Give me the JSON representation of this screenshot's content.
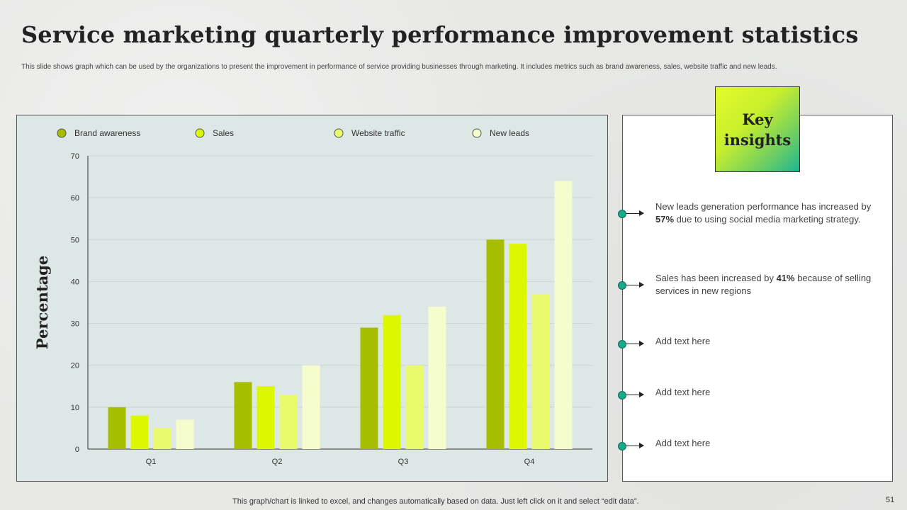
{
  "page": {
    "title": "Service marketing quarterly performance improvement statistics",
    "subtitle": "This slide shows graph which can be used by the organizations to present the improvement in performance of service providing businesses through marketing. It includes metrics such as brand awareness, sales, website traffic and new leads.",
    "footer_note": "This graph/chart is linked to excel,  and changes automatically based on data. Just left click on it and select “edit data”.",
    "page_number": "51"
  },
  "chart_data": {
    "type": "bar",
    "title": "",
    "xlabel": "",
    "ylabel": "Percentage",
    "ylim": [
      0,
      70
    ],
    "yticks": [
      0,
      10,
      20,
      30,
      40,
      50,
      60,
      70
    ],
    "grid": true,
    "legend_position": "top",
    "categories": [
      "Q1",
      "Q2",
      "Q3",
      "Q4"
    ],
    "series": [
      {
        "name": "Brand awareness",
        "color": "#a6bd00",
        "values": [
          10,
          16,
          29,
          50
        ]
      },
      {
        "name": "Sales",
        "color": "#dcf800",
        "values": [
          8,
          15,
          32,
          49
        ]
      },
      {
        "name": "Website traffic",
        "color": "#e9fb6b",
        "values": [
          5,
          13,
          20,
          37
        ]
      },
      {
        "name": "New  leads",
        "color": "#f5fdcf",
        "values": [
          7,
          20,
          34,
          64
        ]
      }
    ]
  },
  "insights": {
    "heading": "Key insights",
    "items": [
      {
        "pre": "New leads generation performance has increased by ",
        "bold": "57%",
        "post": " due to using social media marketing strategy."
      },
      {
        "pre": "Sales has been increased by ",
        "bold": "41%",
        "post": " because of selling services in new regions"
      },
      {
        "pre": "Add text here",
        "bold": "",
        "post": ""
      },
      {
        "pre": "Add text here",
        "bold": "",
        "post": ""
      },
      {
        "pre": "Add text here",
        "bold": "",
        "post": ""
      }
    ]
  }
}
